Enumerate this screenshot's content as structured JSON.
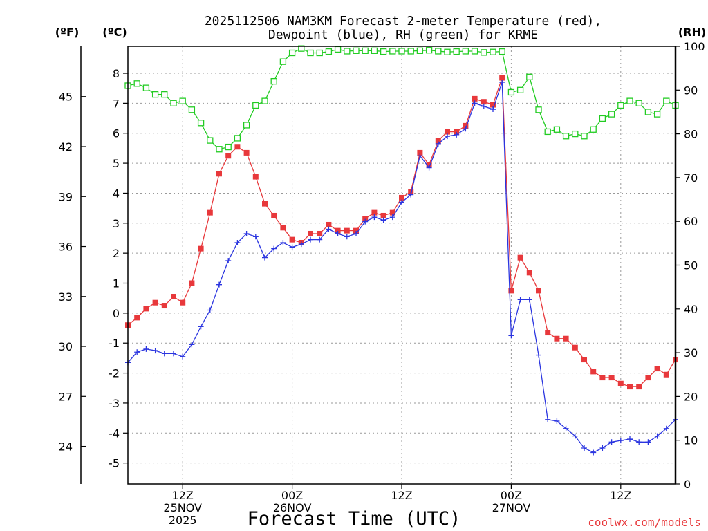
{
  "chart_data": {
    "type": "line",
    "title_line1": "2025112506 NAM3KM Forecast 2-meter Temperature (red),",
    "title_line2": "Dewpoint (blue), RH (green) for KRME",
    "xlabel": "Forecast Time (UTC)",
    "credit": "coolwx.com/models",
    "left_unit_f": "(ºF)",
    "left_unit_c": "(ºC)",
    "right_unit": "(RH)",
    "xlim": [
      0,
      60
    ],
    "ylim_c": [
      -5.7,
      8.9
    ],
    "ylim_rh": [
      0,
      100
    ],
    "x_ticks": [
      {
        "hour": 6,
        "label1": "12Z",
        "label2": "25NOV",
        "label3": "2025"
      },
      {
        "hour": 18,
        "label1": "00Z",
        "label2": "26NOV",
        "label3": ""
      },
      {
        "hour": 30,
        "label1": "12Z",
        "label2": "",
        "label3": ""
      },
      {
        "hour": 42,
        "label1": "00Z",
        "label2": "27NOV",
        "label3": ""
      },
      {
        "hour": 54,
        "label1": "12Z",
        "label2": "",
        "label3": ""
      }
    ],
    "y_ticks_c": [
      -5,
      -4,
      -3,
      -2,
      -1,
      0,
      1,
      2,
      3,
      4,
      5,
      6,
      7,
      8
    ],
    "y_ticks_f": [
      24,
      27,
      30,
      33,
      36,
      39,
      42,
      45
    ],
    "y_ticks_rh": [
      0,
      10,
      20,
      30,
      40,
      50,
      60,
      70,
      80,
      90,
      100
    ],
    "colors": {
      "temperature": "#e8383b",
      "dewpoint": "#2b35e0",
      "rh": "#22cc22",
      "credit": "#e8383b",
      "grid": "#999999"
    },
    "series": [
      {
        "name": "Temperature",
        "unit": "C",
        "values": [
          -0.4,
          -0.15,
          0.15,
          0.35,
          0.25,
          0.55,
          0.35,
          1.0,
          2.15,
          3.35,
          4.65,
          5.25,
          5.55,
          5.35,
          4.55,
          3.65,
          3.25,
          2.85,
          2.45,
          2.35,
          2.65,
          2.65,
          2.95,
          2.75,
          2.75,
          2.75,
          3.15,
          3.35,
          3.25,
          3.35,
          3.85,
          4.05,
          5.35,
          4.95,
          5.75,
          6.05,
          6.05,
          6.25,
          7.15,
          7.05,
          6.95,
          7.85,
          0.75,
          1.85,
          1.35,
          0.75,
          -0.65,
          -0.85,
          -0.85,
          -1.15,
          -1.55,
          -1.95,
          -2.15,
          -2.15,
          -2.35,
          -2.45,
          -2.45,
          -2.15,
          -1.85,
          -2.05,
          -1.55
        ]
      },
      {
        "name": "Dewpoint",
        "unit": "C",
        "values": [
          -1.65,
          -1.3,
          -1.2,
          -1.25,
          -1.35,
          -1.35,
          -1.45,
          -1.05,
          -0.45,
          0.1,
          0.95,
          1.75,
          2.35,
          2.65,
          2.55,
          1.85,
          2.15,
          2.35,
          2.2,
          2.3,
          2.45,
          2.45,
          2.8,
          2.65,
          2.55,
          2.65,
          3.05,
          3.2,
          3.1,
          3.2,
          3.7,
          3.95,
          5.25,
          4.85,
          5.65,
          5.9,
          5.95,
          6.15,
          7.0,
          6.9,
          6.8,
          7.7,
          -0.75,
          0.45,
          0.45,
          -1.4,
          -3.55,
          -3.6,
          -3.85,
          -4.1,
          -4.5,
          -4.65,
          -4.5,
          -4.3,
          -4.25,
          -4.2,
          -4.3,
          -4.3,
          -4.1,
          -3.85,
          -3.55
        ]
      },
      {
        "name": "RH",
        "unit": "%",
        "values": [
          91,
          91.5,
          90.5,
          89,
          89,
          87,
          87.5,
          85.5,
          82.5,
          78.5,
          76.5,
          77,
          79,
          82,
          86.5,
          87.5,
          92,
          96.5,
          98.5,
          99.5,
          98.5,
          98.5,
          98.8,
          99.3,
          98.9,
          99.0,
          99.0,
          99.0,
          98.8,
          98.9,
          98.9,
          98.9,
          99.0,
          99.1,
          98.9,
          98.7,
          98.8,
          98.9,
          98.9,
          98.6,
          98.7,
          98.8,
          89.5,
          90,
          93,
          85.5,
          80.5,
          81,
          79.5,
          80,
          79.5,
          81,
          83.5,
          84.5,
          86.5,
          87.5,
          87,
          85,
          84.5,
          87.5,
          86.5
        ]
      }
    ]
  }
}
